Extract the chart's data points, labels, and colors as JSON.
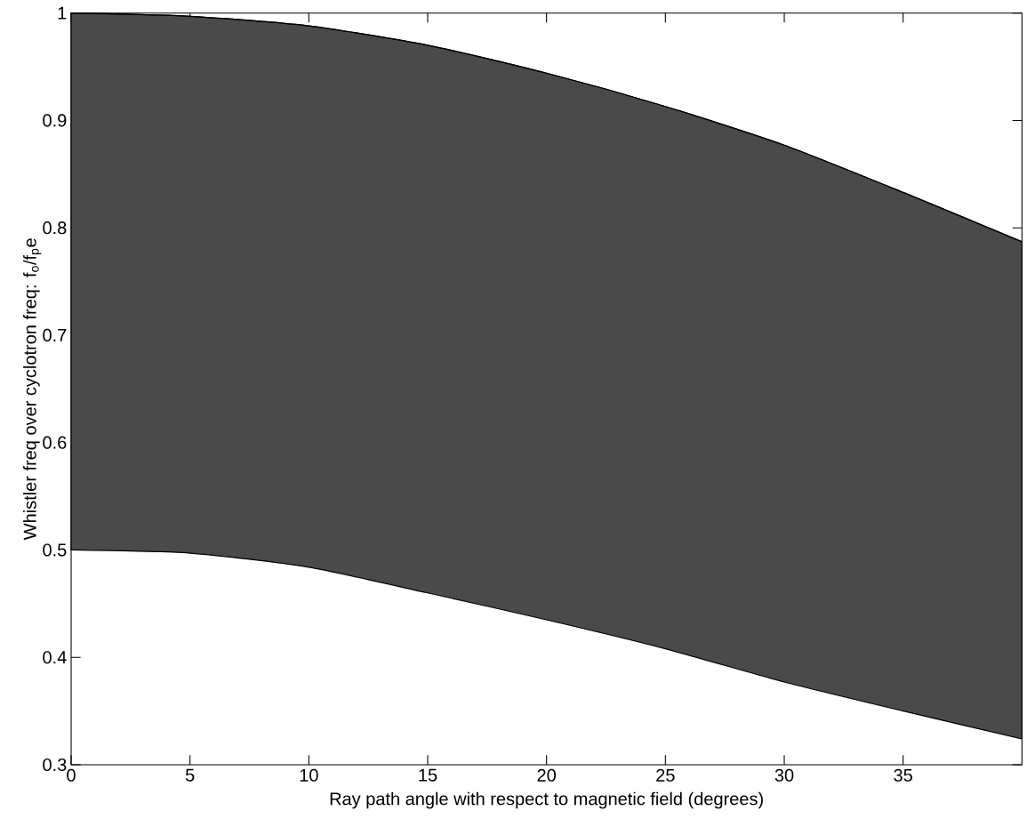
{
  "chart_data": {
    "type": "line",
    "xlabel": "Ray path angle with respect to magnetic field (degrees)",
    "ylabel": "Whistler freq over cyclotron freq: f$_{o}$/f$_{p}$e",
    "x": [
      0,
      5,
      10,
      15,
      20,
      25,
      30,
      35,
      40
    ],
    "series": [
      {
        "color": "#000000",
        "values": [
          1.0,
          0.997,
          0.988,
          0.97,
          0.944,
          0.913,
          0.877,
          0.833,
          0.787
        ],
        "upper": [
          1.0,
          0.997,
          0.988,
          0.97,
          0.944,
          0.913,
          0.877,
          0.833,
          0.787
        ],
        "lower": [
          0.5,
          0.497,
          0.484,
          0.46,
          0.435,
          0.408,
          0.377,
          0.35,
          0.324
        ]
      }
    ],
    "xlim": [
      0,
      40
    ],
    "ylim": [
      0.3,
      1
    ],
    "xticks": [
      0,
      5,
      10,
      15,
      20,
      25,
      30,
      35
    ],
    "yticks": [
      0.3,
      0.4,
      0.5,
      0.6,
      0.7,
      0.8,
      0.9,
      1
    ],
    "grid": false
  }
}
